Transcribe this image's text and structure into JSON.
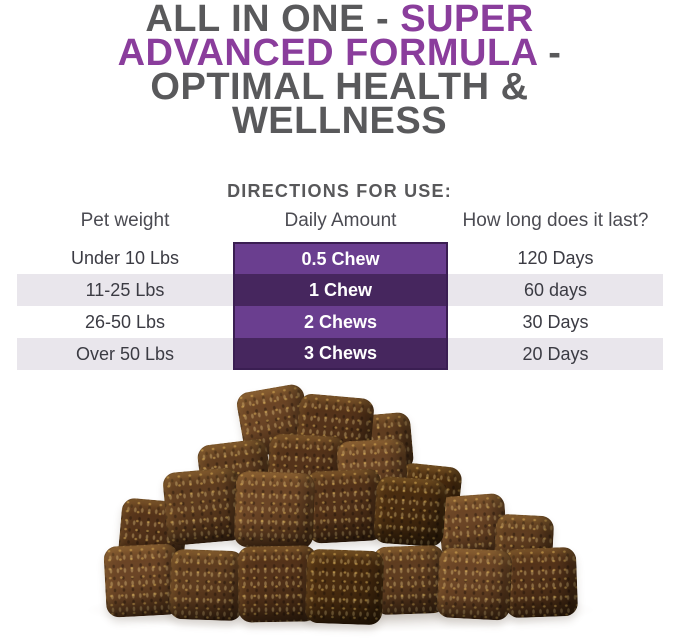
{
  "title": {
    "line1_gray": "ALL IN ONE  - ",
    "line1_purple": "SUPER",
    "line2_purple": "ADVANCED FORMULA",
    "line2_gray": " -",
    "line3_gray": "OPTIMAL HEALTH &",
    "line4_gray": "WELLNESS"
  },
  "directions": {
    "heading": "DIRECTIONS FOR USE:"
  },
  "table": {
    "headers": [
      "Pet weight",
      "Daily Amount",
      "How long does it last?"
    ],
    "rows": [
      {
        "weight": "Under 10 Lbs",
        "amount": "0.5 Chew",
        "duration": "120 Days"
      },
      {
        "weight": "11-25 Lbs",
        "amount": "1 Chew",
        "duration": "60 days"
      },
      {
        "weight": "26-50 Lbs",
        "amount": "2 Chews",
        "duration": "30 Days"
      },
      {
        "weight": "Over 50 Lbs",
        "amount": "3 Chews",
        "duration": "20 Days"
      }
    ]
  },
  "chew_pile": {
    "alt": "Pile of brown speckled soft chew cubes on a white surface"
  },
  "colors": {
    "title_gray": "#59595b",
    "title_purple": "#8a3d9c",
    "purple_mid": "#6a3e8f",
    "purple_dark": "#46265e",
    "purple_border": "#3a1e52",
    "stripe": "#e9e6ec",
    "text_dark": "#3b3b43",
    "header_text": "#4b4b52",
    "bg": "#ffffff"
  }
}
